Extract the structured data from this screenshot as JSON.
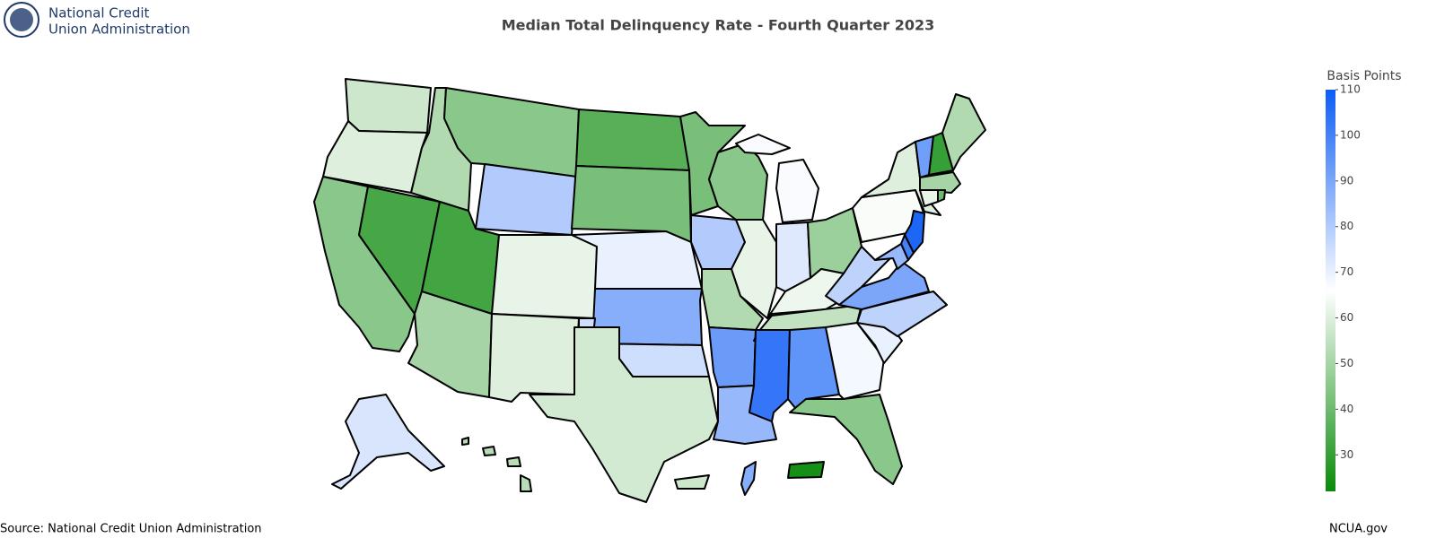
{
  "header": {
    "org_line1": "National Credit",
    "org_line2": "Union Administration"
  },
  "chart_data": {
    "type": "choropleth",
    "title": "Median Total Delinquency Rate - Fourth Quarter 2023",
    "colorbar_title": "Basis Points",
    "values": [
      57,
      60,
      45,
      33,
      52,
      45,
      80,
      32,
      62,
      50,
      60,
      36,
      42,
      70,
      88,
      75,
      58,
      42,
      80,
      52,
      93,
      85,
      45,
      62,
      67,
      72,
      48,
      63,
      55,
      103,
      95,
      68,
      45,
      70,
      78,
      90,
      78,
      65,
      60,
      92,
      30,
      52,
      50,
      40,
      62,
      107,
      100,
      85,
      73,
      53,
      24,
      88,
      57
    ],
    "zlim": [
      22,
      110
    ],
    "zticks": [
      30,
      40,
      50,
      60,
      70,
      80,
      90,
      100,
      110
    ],
    "colorscale": [
      "#0a8a0a",
      "#ffffff",
      "#0d5cf5"
    ]
  },
  "footer": {
    "source": "Source: National Credit Union Administration",
    "site": "NCUA.gov"
  }
}
